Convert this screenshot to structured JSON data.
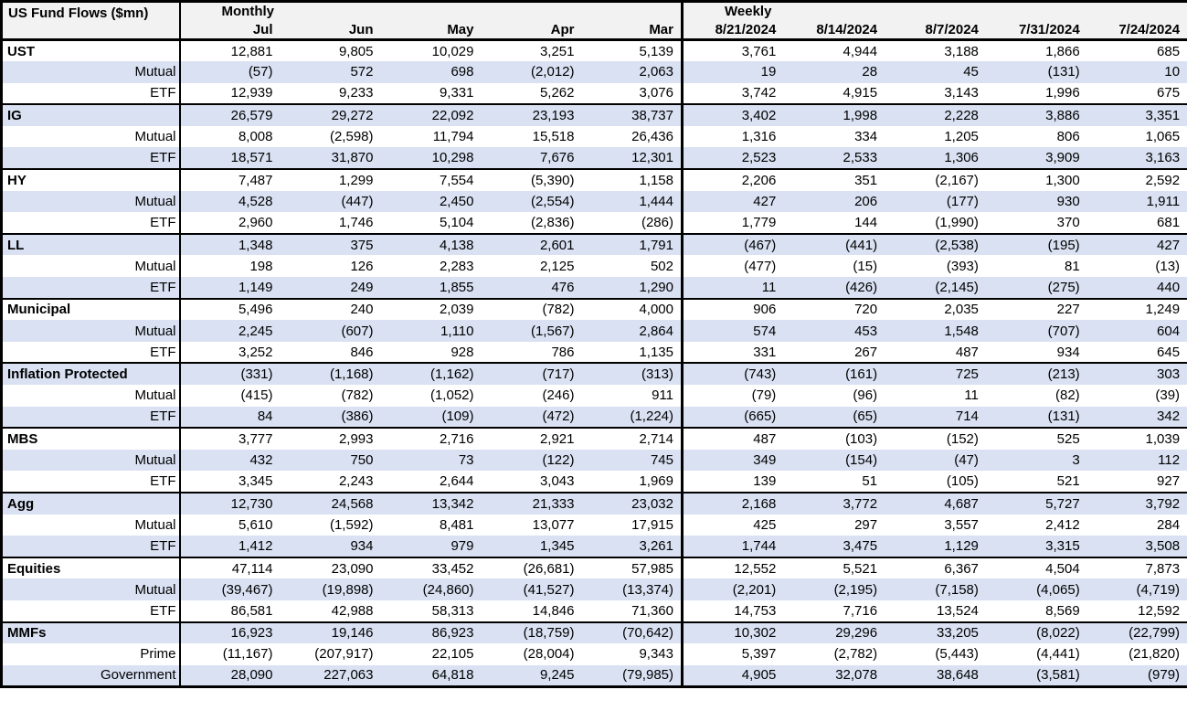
{
  "header": {
    "title": "US Fund Flows ($mn)"
  },
  "sections": [
    {
      "label": "Monthly",
      "columns": [
        "Jul",
        "Jun",
        "May",
        "Apr",
        "Mar"
      ]
    },
    {
      "label": "Weekly",
      "columns": [
        "8/21/2024",
        "8/14/2024",
        "8/7/2024",
        "7/31/2024",
        "7/24/2024"
      ]
    }
  ],
  "colors": {
    "stripe": "#d9e1f2",
    "header_bg": "#f2f2f2",
    "border": "#000000",
    "text": "#000000"
  },
  "groups": [
    {
      "rows": [
        {
          "label": "UST",
          "group_header": true,
          "values": [
            "12,881",
            "9,805",
            "10,029",
            "3,251",
            "5,139",
            "3,761",
            "4,944",
            "3,188",
            "1,866",
            "685"
          ]
        },
        {
          "label": "Mutual",
          "group_header": false,
          "values": [
            "(57)",
            "572",
            "698",
            "(2,012)",
            "2,063",
            "19",
            "28",
            "45",
            "(131)",
            "10"
          ]
        },
        {
          "label": "ETF",
          "group_header": false,
          "values": [
            "12,939",
            "9,233",
            "9,331",
            "5,262",
            "3,076",
            "3,742",
            "4,915",
            "3,143",
            "1,996",
            "675"
          ]
        }
      ]
    },
    {
      "rows": [
        {
          "label": "IG",
          "group_header": true,
          "values": [
            "26,579",
            "29,272",
            "22,092",
            "23,193",
            "38,737",
            "3,402",
            "1,998",
            "2,228",
            "3,886",
            "3,351"
          ]
        },
        {
          "label": "Mutual",
          "group_header": false,
          "values": [
            "8,008",
            "(2,598)",
            "11,794",
            "15,518",
            "26,436",
            "1,316",
            "334",
            "1,205",
            "806",
            "1,065"
          ]
        },
        {
          "label": "ETF",
          "group_header": false,
          "values": [
            "18,571",
            "31,870",
            "10,298",
            "7,676",
            "12,301",
            "2,523",
            "2,533",
            "1,306",
            "3,909",
            "3,163"
          ]
        }
      ]
    },
    {
      "rows": [
        {
          "label": "HY",
          "group_header": true,
          "values": [
            "7,487",
            "1,299",
            "7,554",
            "(5,390)",
            "1,158",
            "2,206",
            "351",
            "(2,167)",
            "1,300",
            "2,592"
          ]
        },
        {
          "label": "Mutual",
          "group_header": false,
          "values": [
            "4,528",
            "(447)",
            "2,450",
            "(2,554)",
            "1,444",
            "427",
            "206",
            "(177)",
            "930",
            "1,911"
          ]
        },
        {
          "label": "ETF",
          "group_header": false,
          "values": [
            "2,960",
            "1,746",
            "5,104",
            "(2,836)",
            "(286)",
            "1,779",
            "144",
            "(1,990)",
            "370",
            "681"
          ]
        }
      ]
    },
    {
      "rows": [
        {
          "label": "LL",
          "group_header": true,
          "values": [
            "1,348",
            "375",
            "4,138",
            "2,601",
            "1,791",
            "(467)",
            "(441)",
            "(2,538)",
            "(195)",
            "427"
          ]
        },
        {
          "label": "Mutual",
          "group_header": false,
          "values": [
            "198",
            "126",
            "2,283",
            "2,125",
            "502",
            "(477)",
            "(15)",
            "(393)",
            "81",
            "(13)"
          ]
        },
        {
          "label": "ETF",
          "group_header": false,
          "values": [
            "1,149",
            "249",
            "1,855",
            "476",
            "1,290",
            "11",
            "(426)",
            "(2,145)",
            "(275)",
            "440"
          ]
        }
      ]
    },
    {
      "rows": [
        {
          "label": "Municipal",
          "group_header": true,
          "values": [
            "5,496",
            "240",
            "2,039",
            "(782)",
            "4,000",
            "906",
            "720",
            "2,035",
            "227",
            "1,249"
          ]
        },
        {
          "label": "Mutual",
          "group_header": false,
          "values": [
            "2,245",
            "(607)",
            "1,110",
            "(1,567)",
            "2,864",
            "574",
            "453",
            "1,548",
            "(707)",
            "604"
          ]
        },
        {
          "label": "ETF",
          "group_header": false,
          "values": [
            "3,252",
            "846",
            "928",
            "786",
            "1,135",
            "331",
            "267",
            "487",
            "934",
            "645"
          ]
        }
      ]
    },
    {
      "rows": [
        {
          "label": "Inflation Protected",
          "group_header": true,
          "values": [
            "(331)",
            "(1,168)",
            "(1,162)",
            "(717)",
            "(313)",
            "(743)",
            "(161)",
            "725",
            "(213)",
            "303"
          ]
        },
        {
          "label": "Mutual",
          "group_header": false,
          "values": [
            "(415)",
            "(782)",
            "(1,052)",
            "(246)",
            "911",
            "(79)",
            "(96)",
            "11",
            "(82)",
            "(39)"
          ]
        },
        {
          "label": "ETF",
          "group_header": false,
          "values": [
            "84",
            "(386)",
            "(109)",
            "(472)",
            "(1,224)",
            "(665)",
            "(65)",
            "714",
            "(131)",
            "342"
          ]
        }
      ]
    },
    {
      "rows": [
        {
          "label": "MBS",
          "group_header": true,
          "values": [
            "3,777",
            "2,993",
            "2,716",
            "2,921",
            "2,714",
            "487",
            "(103)",
            "(152)",
            "525",
            "1,039"
          ]
        },
        {
          "label": "Mutual",
          "group_header": false,
          "values": [
            "432",
            "750",
            "73",
            "(122)",
            "745",
            "349",
            "(154)",
            "(47)",
            "3",
            "112"
          ]
        },
        {
          "label": "ETF",
          "group_header": false,
          "values": [
            "3,345",
            "2,243",
            "2,644",
            "3,043",
            "1,969",
            "139",
            "51",
            "(105)",
            "521",
            "927"
          ]
        }
      ]
    },
    {
      "rows": [
        {
          "label": "Agg",
          "group_header": true,
          "values": [
            "12,730",
            "24,568",
            "13,342",
            "21,333",
            "23,032",
            "2,168",
            "3,772",
            "4,687",
            "5,727",
            "3,792"
          ]
        },
        {
          "label": "Mutual",
          "group_header": false,
          "values": [
            "5,610",
            "(1,592)",
            "8,481",
            "13,077",
            "17,915",
            "425",
            "297",
            "3,557",
            "2,412",
            "284"
          ]
        },
        {
          "label": "ETF",
          "group_header": false,
          "values": [
            "1,412",
            "934",
            "979",
            "1,345",
            "3,261",
            "1,744",
            "3,475",
            "1,129",
            "3,315",
            "3,508"
          ]
        }
      ]
    },
    {
      "rows": [
        {
          "label": "Equities",
          "group_header": true,
          "values": [
            "47,114",
            "23,090",
            "33,452",
            "(26,681)",
            "57,985",
            "12,552",
            "5,521",
            "6,367",
            "4,504",
            "7,873"
          ]
        },
        {
          "label": "Mutual",
          "group_header": false,
          "values": [
            "(39,467)",
            "(19,898)",
            "(24,860)",
            "(41,527)",
            "(13,374)",
            "(2,201)",
            "(2,195)",
            "(7,158)",
            "(4,065)",
            "(4,719)"
          ]
        },
        {
          "label": "ETF",
          "group_header": false,
          "values": [
            "86,581",
            "42,988",
            "58,313",
            "14,846",
            "71,360",
            "14,753",
            "7,716",
            "13,524",
            "8,569",
            "12,592"
          ]
        }
      ]
    },
    {
      "rows": [
        {
          "label": "MMFs",
          "group_header": true,
          "values": [
            "16,923",
            "19,146",
            "86,923",
            "(18,759)",
            "(70,642)",
            "10,302",
            "29,296",
            "33,205",
            "(8,022)",
            "(22,799)"
          ]
        },
        {
          "label": "Prime",
          "group_header": false,
          "values": [
            "(11,167)",
            "(207,917)",
            "22,105",
            "(28,004)",
            "9,343",
            "5,397",
            "(2,782)",
            "(5,443)",
            "(4,441)",
            "(21,820)"
          ]
        },
        {
          "label": "Government",
          "group_header": false,
          "values": [
            "28,090",
            "227,063",
            "64,818",
            "9,245",
            "(79,985)",
            "4,905",
            "32,078",
            "38,648",
            "(3,581)",
            "(979)"
          ]
        }
      ]
    }
  ]
}
